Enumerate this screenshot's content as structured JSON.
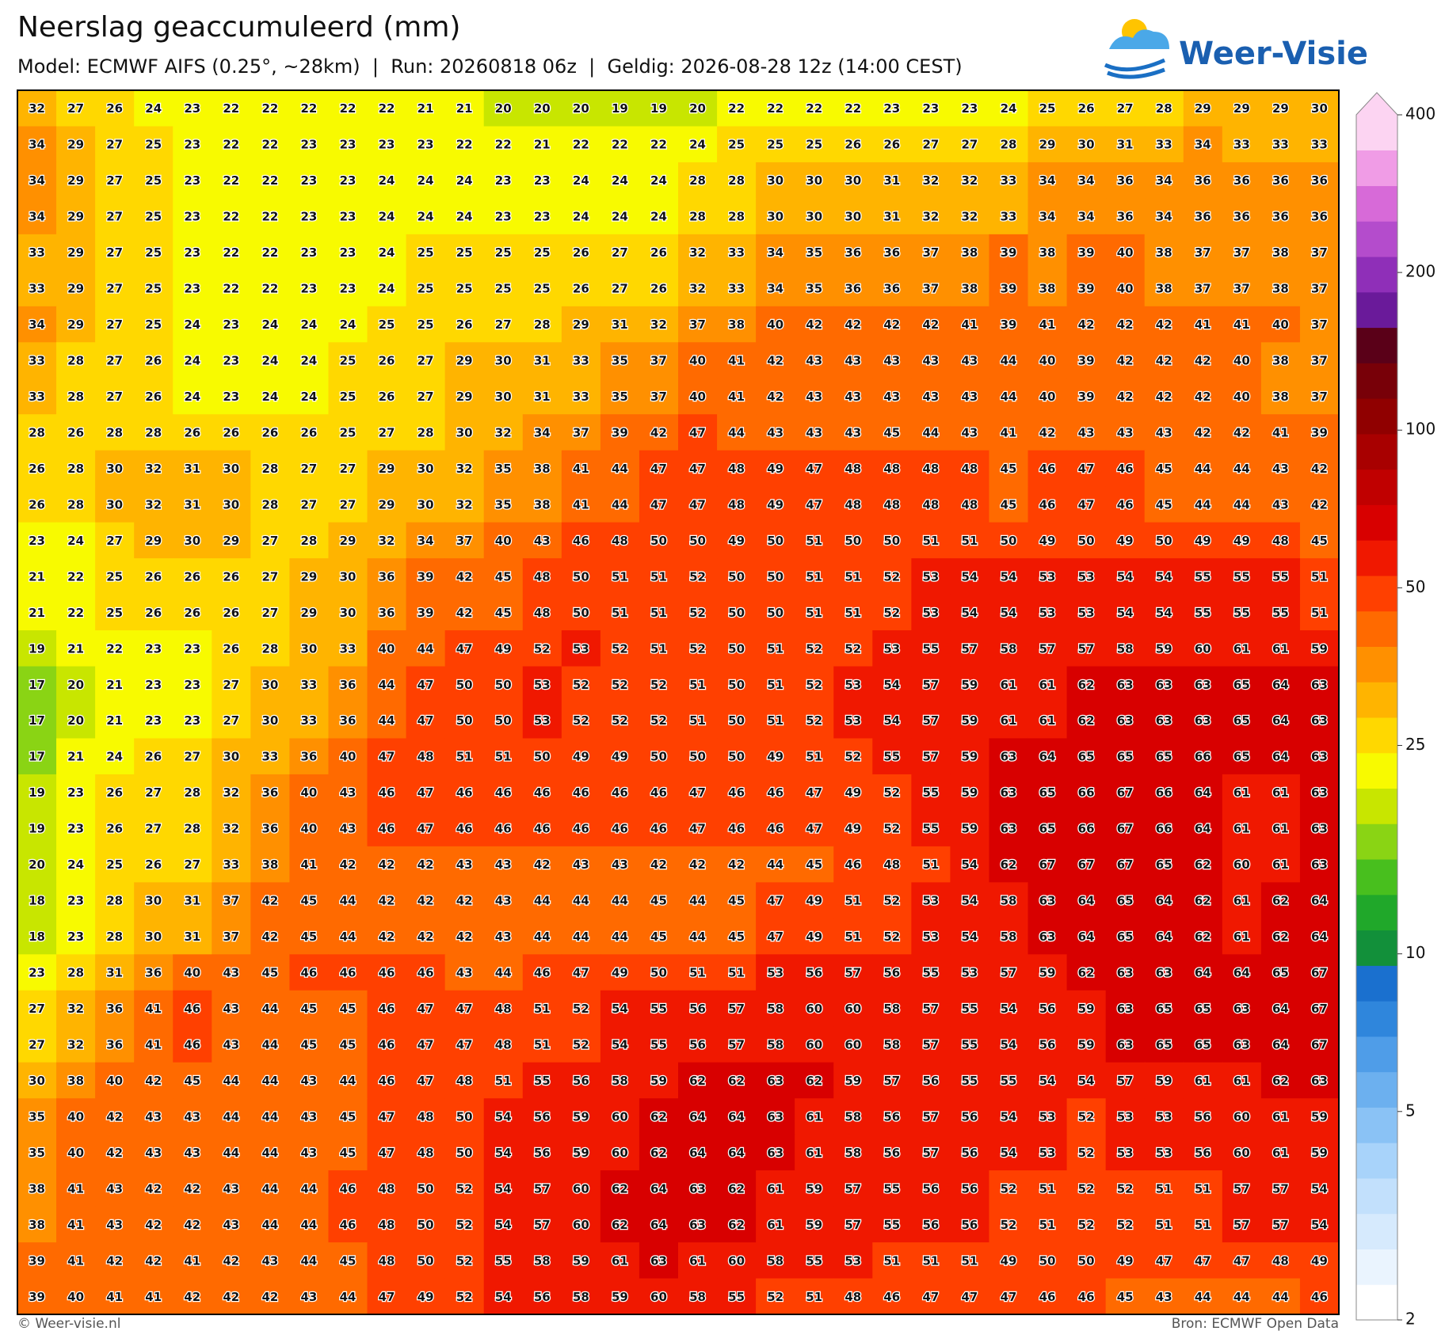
{
  "header": {
    "title": "Neerslag geaccumuleerd (mm)",
    "subtitle": "Model: ECMWF AIFS (0.25°, ~28km)  |  Run: 20260818 06z  |  Geldig: 2026-08-28 12z (14:00 CEST)"
  },
  "logo": {
    "text": "Weer-Visie"
  },
  "map": {
    "values": [
      [
        32,
        27,
        26,
        24,
        23,
        22,
        22,
        22,
        22,
        22,
        21,
        21,
        20,
        20,
        20,
        19,
        19,
        20,
        22,
        22,
        22,
        22,
        23,
        23,
        23,
        24,
        25,
        26,
        27,
        28,
        29,
        29,
        29,
        30
      ],
      [
        34,
        29,
        27,
        25,
        23,
        22,
        22,
        23,
        23,
        23,
        23,
        22,
        22,
        21,
        22,
        22,
        22,
        24,
        25,
        25,
        25,
        26,
        26,
        27,
        27,
        28,
        29,
        30,
        31,
        33,
        34,
        33,
        33,
        33
      ],
      [
        34,
        29,
        27,
        25,
        23,
        22,
        22,
        23,
        23,
        24,
        24,
        24,
        23,
        23,
        24,
        24,
        24,
        28,
        28,
        30,
        30,
        30,
        31,
        32,
        32,
        33,
        34,
        34,
        36,
        34,
        36,
        36,
        36,
        36
      ],
      [
        34,
        29,
        27,
        25,
        23,
        22,
        22,
        23,
        23,
        24,
        24,
        24,
        23,
        23,
        24,
        24,
        24,
        28,
        28,
        30,
        30,
        30,
        31,
        32,
        32,
        33,
        34,
        34,
        36,
        34,
        36,
        36,
        36,
        36
      ],
      [
        33,
        29,
        27,
        25,
        23,
        22,
        22,
        23,
        23,
        24,
        25,
        25,
        25,
        25,
        26,
        27,
        26,
        32,
        33,
        34,
        35,
        36,
        36,
        37,
        38,
        39,
        38,
        39,
        40,
        38,
        37,
        37,
        38,
        37
      ],
      [
        33,
        29,
        27,
        25,
        23,
        22,
        22,
        23,
        23,
        24,
        25,
        25,
        25,
        25,
        26,
        27,
        26,
        32,
        33,
        34,
        35,
        36,
        36,
        37,
        38,
        39,
        38,
        39,
        40,
        38,
        37,
        37,
        38,
        37
      ],
      [
        34,
        29,
        27,
        25,
        24,
        23,
        24,
        24,
        24,
        25,
        25,
        26,
        27,
        28,
        29,
        31,
        32,
        37,
        38,
        40,
        42,
        42,
        42,
        42,
        41,
        39,
        41,
        42,
        42,
        42,
        41,
        41,
        40,
        37
      ],
      [
        33,
        28,
        27,
        26,
        24,
        23,
        24,
        24,
        25,
        26,
        27,
        29,
        30,
        31,
        33,
        35,
        37,
        40,
        41,
        42,
        43,
        43,
        43,
        43,
        43,
        44,
        40,
        39,
        42,
        42,
        42,
        40,
        38,
        37
      ],
      [
        33,
        28,
        27,
        26,
        24,
        23,
        24,
        24,
        25,
        26,
        27,
        29,
        30,
        31,
        33,
        35,
        37,
        40,
        41,
        42,
        43,
        43,
        43,
        43,
        43,
        44,
        40,
        39,
        42,
        42,
        42,
        40,
        38,
        37
      ],
      [
        28,
        26,
        28,
        28,
        26,
        26,
        26,
        26,
        25,
        27,
        28,
        30,
        32,
        34,
        37,
        39,
        42,
        47,
        44,
        43,
        43,
        43,
        45,
        44,
        43,
        41,
        42,
        43,
        43,
        43,
        42,
        42,
        41,
        39
      ],
      [
        26,
        28,
        30,
        32,
        31,
        30,
        28,
        27,
        27,
        29,
        30,
        32,
        35,
        38,
        41,
        44,
        47,
        47,
        48,
        49,
        47,
        48,
        48,
        48,
        48,
        45,
        46,
        47,
        46,
        45,
        44,
        44,
        43,
        42
      ],
      [
        26,
        28,
        30,
        32,
        31,
        30,
        28,
        27,
        27,
        29,
        30,
        32,
        35,
        38,
        41,
        44,
        47,
        47,
        48,
        49,
        47,
        48,
        48,
        48,
        48,
        45,
        46,
        47,
        46,
        45,
        44,
        44,
        43,
        42
      ],
      [
        23,
        24,
        27,
        29,
        30,
        29,
        27,
        28,
        29,
        32,
        34,
        37,
        40,
        43,
        46,
        48,
        50,
        50,
        49,
        50,
        51,
        50,
        50,
        51,
        51,
        50,
        49,
        50,
        49,
        50,
        49,
        49,
        48,
        45
      ],
      [
        21,
        22,
        25,
        26,
        26,
        26,
        27,
        29,
        30,
        36,
        39,
        42,
        45,
        48,
        50,
        51,
        51,
        52,
        50,
        50,
        51,
        51,
        52,
        53,
        54,
        54,
        53,
        53,
        54,
        54,
        55,
        55,
        55,
        51
      ],
      [
        21,
        22,
        25,
        26,
        26,
        26,
        27,
        29,
        30,
        36,
        39,
        42,
        45,
        48,
        50,
        51,
        51,
        52,
        50,
        50,
        51,
        51,
        52,
        53,
        54,
        54,
        53,
        53,
        54,
        54,
        55,
        55,
        55,
        51
      ],
      [
        19,
        21,
        22,
        23,
        23,
        26,
        28,
        30,
        33,
        40,
        44,
        47,
        49,
        52,
        53,
        52,
        51,
        52,
        50,
        51,
        52,
        52,
        53,
        55,
        57,
        58,
        57,
        57,
        58,
        59,
        60,
        61,
        61,
        59
      ],
      [
        17,
        20,
        21,
        23,
        23,
        27,
        30,
        33,
        36,
        44,
        47,
        50,
        50,
        53,
        52,
        52,
        52,
        51,
        50,
        51,
        52,
        53,
        54,
        57,
        59,
        61,
        61,
        62,
        63,
        63,
        63,
        65,
        64,
        63
      ],
      [
        17,
        20,
        21,
        23,
        23,
        27,
        30,
        33,
        36,
        44,
        47,
        50,
        50,
        53,
        52,
        52,
        52,
        51,
        50,
        51,
        52,
        53,
        54,
        57,
        59,
        61,
        61,
        62,
        63,
        63,
        63,
        65,
        64,
        63
      ],
      [
        17,
        21,
        24,
        26,
        27,
        30,
        33,
        36,
        40,
        47,
        48,
        51,
        51,
        50,
        49,
        49,
        50,
        50,
        50,
        49,
        51,
        52,
        55,
        57,
        59,
        63,
        64,
        65,
        65,
        65,
        66,
        65,
        64,
        63
      ],
      [
        19,
        23,
        26,
        27,
        28,
        32,
        36,
        40,
        43,
        46,
        47,
        46,
        46,
        46,
        46,
        46,
        46,
        47,
        46,
        46,
        47,
        49,
        52,
        55,
        59,
        63,
        65,
        66,
        67,
        66,
        64,
        61,
        61,
        63
      ],
      [
        19,
        23,
        26,
        27,
        28,
        32,
        36,
        40,
        43,
        46,
        47,
        46,
        46,
        46,
        46,
        46,
        46,
        47,
        46,
        46,
        47,
        49,
        52,
        55,
        59,
        63,
        65,
        66,
        67,
        66,
        64,
        61,
        61,
        63
      ],
      [
        20,
        24,
        25,
        26,
        27,
        33,
        38,
        41,
        42,
        42,
        42,
        43,
        43,
        42,
        43,
        43,
        42,
        42,
        42,
        44,
        45,
        46,
        48,
        51,
        54,
        62,
        67,
        67,
        67,
        65,
        62,
        60,
        61,
        63
      ],
      [
        18,
        23,
        28,
        30,
        31,
        37,
        42,
        45,
        44,
        42,
        42,
        42,
        43,
        44,
        44,
        44,
        45,
        44,
        45,
        47,
        49,
        51,
        52,
        53,
        54,
        58,
        63,
        64,
        65,
        64,
        62,
        61,
        62,
        64
      ],
      [
        18,
        23,
        28,
        30,
        31,
        37,
        42,
        45,
        44,
        42,
        42,
        42,
        43,
        44,
        44,
        44,
        45,
        44,
        45,
        47,
        49,
        51,
        52,
        53,
        54,
        58,
        63,
        64,
        65,
        64,
        62,
        61,
        62,
        64
      ],
      [
        23,
        28,
        31,
        36,
        40,
        43,
        45,
        46,
        46,
        46,
        46,
        43,
        44,
        46,
        47,
        49,
        50,
        51,
        51,
        53,
        56,
        57,
        56,
        55,
        53,
        57,
        59,
        62,
        63,
        63,
        64,
        64,
        65,
        67
      ],
      [
        27,
        32,
        36,
        41,
        46,
        43,
        44,
        45,
        45,
        46,
        47,
        47,
        48,
        51,
        52,
        54,
        55,
        56,
        57,
        58,
        60,
        60,
        58,
        57,
        55,
        54,
        56,
        59,
        63,
        65,
        65,
        63,
        64,
        67
      ],
      [
        27,
        32,
        36,
        41,
        46,
        43,
        44,
        45,
        45,
        46,
        47,
        47,
        48,
        51,
        52,
        54,
        55,
        56,
        57,
        58,
        60,
        60,
        58,
        57,
        55,
        54,
        56,
        59,
        63,
        65,
        65,
        63,
        64,
        67
      ],
      [
        30,
        38,
        40,
        42,
        45,
        44,
        44,
        43,
        44,
        46,
        47,
        48,
        51,
        55,
        56,
        58,
        59,
        62,
        62,
        63,
        62,
        59,
        57,
        56,
        55,
        55,
        54,
        54,
        57,
        59,
        61,
        61,
        62,
        63
      ],
      [
        35,
        40,
        42,
        43,
        43,
        44,
        44,
        43,
        45,
        47,
        48,
        50,
        54,
        56,
        59,
        60,
        62,
        64,
        64,
        63,
        61,
        58,
        56,
        57,
        56,
        54,
        53,
        52,
        53,
        53,
        56,
        60,
        61,
        59
      ],
      [
        35,
        40,
        42,
        43,
        43,
        44,
        44,
        43,
        45,
        47,
        48,
        50,
        54,
        56,
        59,
        60,
        62,
        64,
        64,
        63,
        61,
        58,
        56,
        57,
        56,
        54,
        53,
        52,
        53,
        53,
        56,
        60,
        61,
        59
      ],
      [
        38,
        41,
        43,
        42,
        42,
        43,
        44,
        44,
        46,
        48,
        50,
        52,
        54,
        57,
        60,
        62,
        64,
        63,
        62,
        61,
        59,
        57,
        55,
        56,
        56,
        52,
        51,
        52,
        52,
        51,
        51,
        57,
        57,
        54
      ],
      [
        38,
        41,
        43,
        42,
        42,
        43,
        44,
        44,
        46,
        48,
        50,
        52,
        54,
        57,
        60,
        62,
        64,
        63,
        62,
        61,
        59,
        57,
        55,
        56,
        56,
        52,
        51,
        52,
        52,
        51,
        51,
        57,
        57,
        54
      ],
      [
        39,
        41,
        42,
        42,
        41,
        42,
        43,
        44,
        45,
        48,
        50,
        52,
        55,
        58,
        59,
        61,
        63,
        61,
        60,
        58,
        55,
        53,
        51,
        51,
        51,
        49,
        50,
        50,
        49,
        47,
        47,
        47,
        48,
        49
      ],
      [
        39,
        40,
        41,
        41,
        42,
        42,
        42,
        43,
        44,
        47,
        49,
        52,
        54,
        56,
        58,
        59,
        60,
        58,
        55,
        52,
        51,
        48,
        46,
        47,
        47,
        47,
        46,
        46,
        45,
        43,
        44,
        44,
        44,
        46
      ]
    ]
  },
  "colorbar": {
    "scale": "log",
    "lim": [
      2,
      400
    ],
    "ticks": [
      2,
      5,
      10,
      25,
      50,
      100,
      200,
      400
    ],
    "colors": [
      "#ffffff",
      "#eaf4fe",
      "#d6eafd",
      "#c2e0fc",
      "#a8d3fa",
      "#8ac2f5",
      "#6cb0ef",
      "#4f9de8",
      "#2f86dc",
      "#1a70cf",
      "#12903a",
      "#20a82a",
      "#48bf1e",
      "#8ad414",
      "#c8e600",
      "#f8fa00",
      "#ffd800",
      "#ffb400",
      "#ff9000",
      "#ff6a00",
      "#ff4000",
      "#f01800",
      "#d80000",
      "#c00000",
      "#a80000",
      "#900000",
      "#780008",
      "#5a0018",
      "#6a1a9a",
      "#8f2fb8",
      "#b44ccc",
      "#d76ad8",
      "#f09ce6",
      "#fcd4f2"
    ]
  },
  "footer": {
    "left": "© Weer-visie.nl",
    "right": "Bron: ECMWF Open Data"
  }
}
